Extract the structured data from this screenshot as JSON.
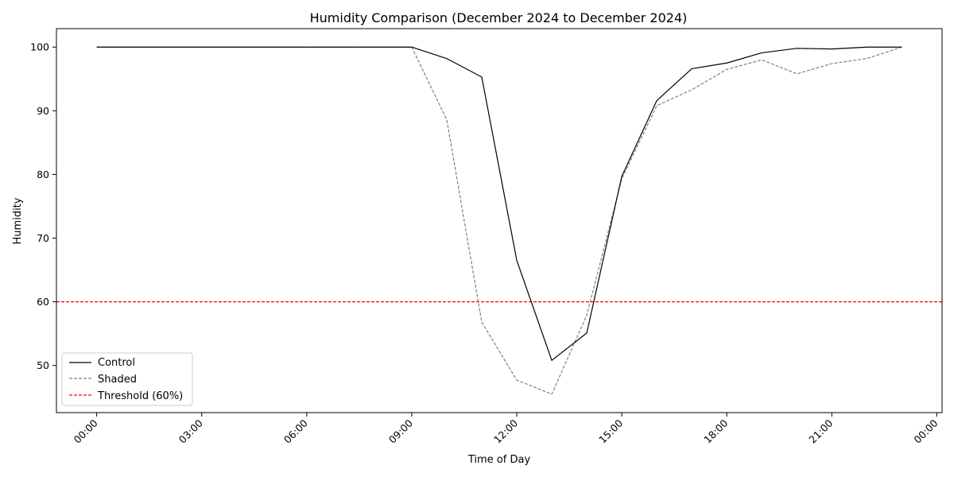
{
  "chart_data": {
    "type": "line",
    "title": "Humidity Comparison (December 2024 to December 2024)",
    "xlabel": "Time of Day",
    "ylabel": "Humidity",
    "x_ticks": [
      "00:00",
      "03:00",
      "06:00",
      "09:00",
      "12:00",
      "15:00",
      "18:00",
      "21:00",
      "00:00"
    ],
    "y_ticks": [
      50,
      60,
      70,
      80,
      90,
      100
    ],
    "xlim": [
      -1.15,
      24.15
    ],
    "ylim": [
      42.6,
      102.9
    ],
    "x": [
      0,
      1,
      2,
      3,
      4,
      5,
      6,
      7,
      8,
      9,
      10,
      11,
      12,
      13,
      14,
      15,
      16,
      17,
      18,
      19,
      20,
      21,
      22,
      23
    ],
    "series": [
      {
        "name": "Control",
        "color": "#000000",
        "style": "solid",
        "values": [
          100,
          100,
          100,
          100,
          100,
          100,
          100,
          100,
          100,
          100,
          98.2,
          95.3,
          66.5,
          50.8,
          55.1,
          79.7,
          91.6,
          96.6,
          97.5,
          99.1,
          99.8,
          99.7,
          100,
          100
        ]
      },
      {
        "name": "Shaded",
        "color": "#808080",
        "style": "dashed",
        "values": [
          100,
          100,
          100,
          100,
          100,
          100,
          100,
          100,
          100,
          100,
          88.6,
          56.8,
          47.7,
          45.5,
          57.9,
          79.3,
          90.8,
          93.3,
          96.5,
          98.0,
          95.8,
          97.4,
          98.2,
          100
        ]
      }
    ],
    "threshold": {
      "name": "Threshold (60%)",
      "value": 60,
      "color": "#ff0000",
      "style": "dashed"
    },
    "grid": false,
    "legend_position": "lower-left"
  }
}
